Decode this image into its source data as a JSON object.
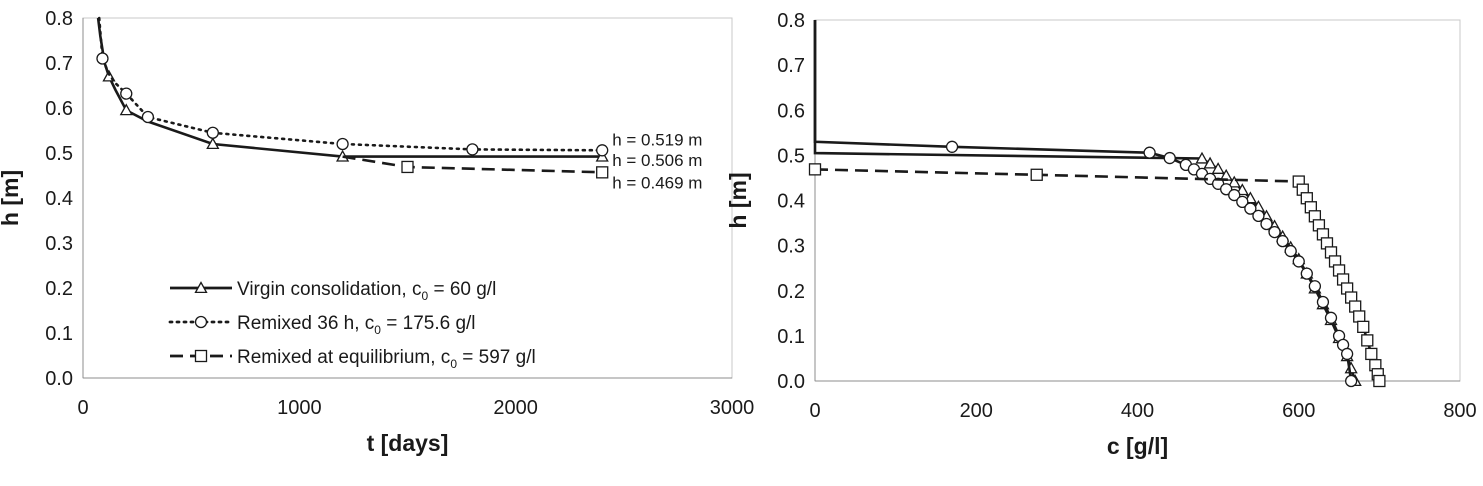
{
  "chart_data": [
    {
      "type": "line",
      "title": "",
      "xlabel": "t [days]",
      "ylabel": "h [m]",
      "xlim": [
        0,
        3000
      ],
      "ylim": [
        0.0,
        0.8
      ],
      "xticks": [
        "0",
        "1000",
        "2000",
        "3000"
      ],
      "yticks": [
        "0.0",
        "0.1",
        "0.2",
        "0.3",
        "0.4",
        "0.5",
        "0.6",
        "0.7",
        "0.8"
      ],
      "grid": false,
      "legend_position": "bottom-left",
      "series": [
        {
          "name": "Virgin consolidation, c0 = 60 g/l",
          "legend_main": "Virgin consolidation, c",
          "legend_sub": "0",
          "legend_tail": " = 60 g/l",
          "line": "solid",
          "marker": "triangle",
          "x": [
            70,
            80,
            100,
            120,
            150,
            200,
            300,
            600,
            1200,
            1800,
            2400
          ],
          "y": [
            0.8,
            0.76,
            0.7,
            0.67,
            0.64,
            0.595,
            0.57,
            0.52,
            0.492,
            0.492,
            0.492
          ],
          "marker_x": [
            120,
            200,
            600,
            1200,
            2400
          ],
          "marker_y": [
            0.67,
            0.595,
            0.52,
            0.492,
            0.492
          ]
        },
        {
          "name": "Remixed 36 h, c0 = 175.6 g/l",
          "legend_main": "Remixed 36 h, c",
          "legend_sub": "0",
          "legend_tail": " = 175.6 g/l",
          "line": "dotted",
          "marker": "circle",
          "x": [
            75,
            90,
            120,
            150,
            200,
            300,
            600,
            1200,
            1800,
            2400
          ],
          "y": [
            0.8,
            0.71,
            0.675,
            0.655,
            0.632,
            0.58,
            0.545,
            0.52,
            0.508,
            0.506
          ],
          "marker_x": [
            90,
            200,
            300,
            600,
            1200,
            1800,
            2400
          ],
          "marker_y": [
            0.71,
            0.632,
            0.58,
            0.545,
            0.52,
            0.508,
            0.506
          ]
        },
        {
          "name": "Remixed at equilibrium, c0 = 597 g/l",
          "legend_main": "Remixed at equilibrium, c",
          "legend_sub": "0",
          "legend_tail": " =  597 g/l",
          "line": "dashed",
          "marker": "square",
          "x": [
            1200,
            1500,
            2400
          ],
          "y": [
            0.492,
            0.469,
            0.457
          ],
          "marker_x": [
            1500,
            2400
          ],
          "marker_y": [
            0.469,
            0.457
          ]
        }
      ],
      "annotations": [
        {
          "text": "h = 0.519 m",
          "x": 2400,
          "y": 0.53
        },
        {
          "text": "h = 0.506 m",
          "x": 2400,
          "y": 0.484
        },
        {
          "text": "h = 0.469 m",
          "x": 2400,
          "y": 0.435
        }
      ]
    },
    {
      "type": "line",
      "title": "",
      "xlabel": "c [g/l]",
      "ylabel": "h [m]",
      "xlim": [
        0,
        800
      ],
      "ylim": [
        0.0,
        0.8
      ],
      "xticks": [
        "0",
        "200",
        "400",
        "600",
        "800"
      ],
      "yticks": [
        "0.0",
        "0.1",
        "0.2",
        "0.3",
        "0.4",
        "0.5",
        "0.6",
        "0.7",
        "0.8"
      ],
      "grid": false,
      "series": [
        {
          "name": "Virgin consolidation",
          "line": "solid",
          "marker": "triangle",
          "x": [
            0,
            0,
            480,
            500,
            520,
            540,
            560,
            580,
            600,
            620,
            640,
            660,
            670
          ],
          "y": [
            0.8,
            0.505,
            0.493,
            0.47,
            0.44,
            0.405,
            0.365,
            0.32,
            0.27,
            0.205,
            0.135,
            0.055,
            0.0
          ],
          "marker_x": [
            480,
            490,
            500,
            510,
            520,
            530,
            540,
            550,
            560,
            570,
            580,
            590,
            600,
            610,
            620,
            630,
            640,
            650,
            660,
            665,
            670
          ],
          "marker_y": [
            0.493,
            0.482,
            0.47,
            0.455,
            0.44,
            0.423,
            0.405,
            0.386,
            0.365,
            0.343,
            0.32,
            0.296,
            0.27,
            0.238,
            0.205,
            0.17,
            0.135,
            0.095,
            0.055,
            0.028,
            0.0
          ]
        },
        {
          "name": "Remixed 36 h",
          "line": "solid",
          "marker": "circle",
          "x": [
            0,
            0,
            170,
            415,
            440,
            460,
            480,
            500,
            520,
            540,
            560,
            580,
            600,
            620,
            640,
            660,
            665
          ],
          "y": [
            0.8,
            0.53,
            0.519,
            0.506,
            0.494,
            0.479,
            0.459,
            0.437,
            0.412,
            0.382,
            0.348,
            0.31,
            0.265,
            0.21,
            0.14,
            0.06,
            0.0
          ],
          "marker_x": [
            170,
            415,
            440,
            460,
            470,
            480,
            490,
            500,
            510,
            520,
            530,
            540,
            550,
            560,
            570,
            580,
            590,
            600,
            610,
            620,
            630,
            640,
            650,
            655,
            660,
            665
          ],
          "marker_y": [
            0.519,
            0.506,
            0.494,
            0.479,
            0.469,
            0.459,
            0.448,
            0.437,
            0.425,
            0.412,
            0.397,
            0.382,
            0.366,
            0.348,
            0.33,
            0.31,
            0.288,
            0.265,
            0.238,
            0.21,
            0.175,
            0.14,
            0.1,
            0.08,
            0.06,
            0.0
          ]
        },
        {
          "name": "Remixed at equilibrium",
          "line": "dashed",
          "marker": "square",
          "x": [
            0,
            275,
            600,
            610,
            620,
            630,
            640,
            650,
            660,
            670,
            680,
            690,
            700
          ],
          "y": [
            0.469,
            0.457,
            0.442,
            0.405,
            0.365,
            0.325,
            0.285,
            0.245,
            0.205,
            0.165,
            0.12,
            0.06,
            0.0
          ],
          "marker_x": [
            0,
            275,
            600,
            605,
            610,
            615,
            620,
            625,
            630,
            635,
            640,
            645,
            650,
            655,
            660,
            665,
            670,
            675,
            680,
            685,
            690,
            695,
            698,
            700
          ],
          "marker_y": [
            0.469,
            0.457,
            0.442,
            0.424,
            0.405,
            0.385,
            0.365,
            0.345,
            0.325,
            0.305,
            0.285,
            0.265,
            0.245,
            0.225,
            0.205,
            0.185,
            0.165,
            0.143,
            0.12,
            0.09,
            0.06,
            0.035,
            0.015,
            0.0
          ]
        }
      ]
    }
  ]
}
